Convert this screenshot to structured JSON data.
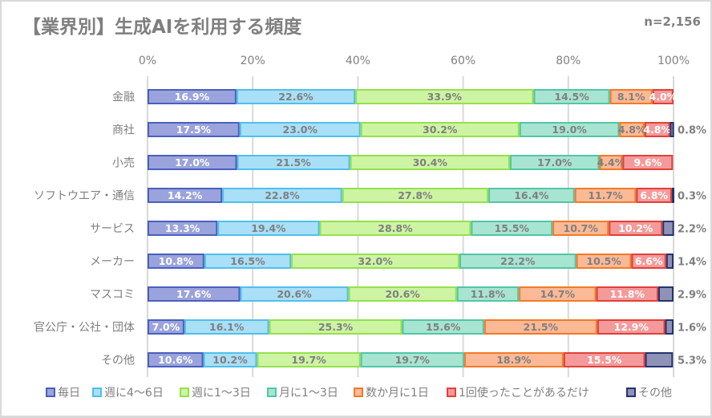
{
  "chart_data": {
    "type": "bar",
    "orientation": "horizontal",
    "stacked": "percent",
    "title": "【業界別】生成AIを利用する頻度",
    "annotation": "n=2,156",
    "xlabel": "",
    "ylabel": "",
    "xlim": [
      0,
      100
    ],
    "x_ticks": [
      "0%",
      "20%",
      "40%",
      "60%",
      "80%",
      "100%"
    ],
    "grid": true,
    "legend_position": "bottom",
    "categories": [
      "金融",
      "商社",
      "小売",
      "ソフトウエア・通信",
      "サービス",
      "メーカー",
      "マスコミ",
      "官公庁・公社・団体",
      "その他"
    ],
    "series": [
      {
        "name": "毎日",
        "fill": "#9aa3dc",
        "stroke": "#4a5fbf",
        "label_color": "#ffffff",
        "values": [
          16.9,
          17.5,
          17.0,
          14.2,
          13.3,
          10.8,
          17.6,
          7.0,
          10.6
        ]
      },
      {
        "name": "週に4〜6日",
        "fill": "#a9dff7",
        "stroke": "#4fc0ea",
        "label_color": "#7f7f7f",
        "values": [
          22.6,
          23.0,
          21.5,
          22.8,
          19.4,
          16.5,
          20.6,
          16.1,
          10.2
        ]
      },
      {
        "name": "週に1〜3日",
        "fill": "#cdf4a3",
        "stroke": "#95e04e",
        "label_color": "#7f7f7f",
        "values": [
          33.9,
          30.2,
          30.4,
          27.8,
          28.8,
          32.0,
          20.6,
          25.3,
          19.7
        ]
      },
      {
        "name": "月に1〜3日",
        "fill": "#a8e4d2",
        "stroke": "#52c6a5",
        "label_color": "#7f7f7f",
        "values": [
          14.5,
          19.0,
          17.0,
          16.4,
          15.5,
          22.2,
          11.8,
          15.6,
          19.7
        ]
      },
      {
        "name": "数か月に1日",
        "fill": "#fbb995",
        "stroke": "#f27a29",
        "label_color": "#7f7f7f",
        "values": [
          8.1,
          4.8,
          4.4,
          11.7,
          10.7,
          10.5,
          14.7,
          21.5,
          18.9
        ]
      },
      {
        "name": "1回使ったことがあるだけ",
        "fill": "#f59a9a",
        "stroke": "#e0413a",
        "label_color": "#ffffff",
        "values": [
          4.0,
          4.8,
          9.6,
          6.8,
          10.2,
          6.6,
          11.8,
          12.9,
          15.5
        ]
      },
      {
        "name": "その他",
        "fill": "#8e92b7",
        "stroke": "#24336e",
        "label_color": "#7f7f7f",
        "values": [
          0.0,
          0.8,
          0.0,
          0.3,
          2.2,
          1.4,
          2.9,
          1.6,
          5.3
        ]
      }
    ],
    "outside_labels": [
      "",
      "0.8%",
      "",
      "0.3%",
      "2.2%",
      "1.4%",
      "2.9%",
      "1.6%",
      "5.3%"
    ]
  }
}
